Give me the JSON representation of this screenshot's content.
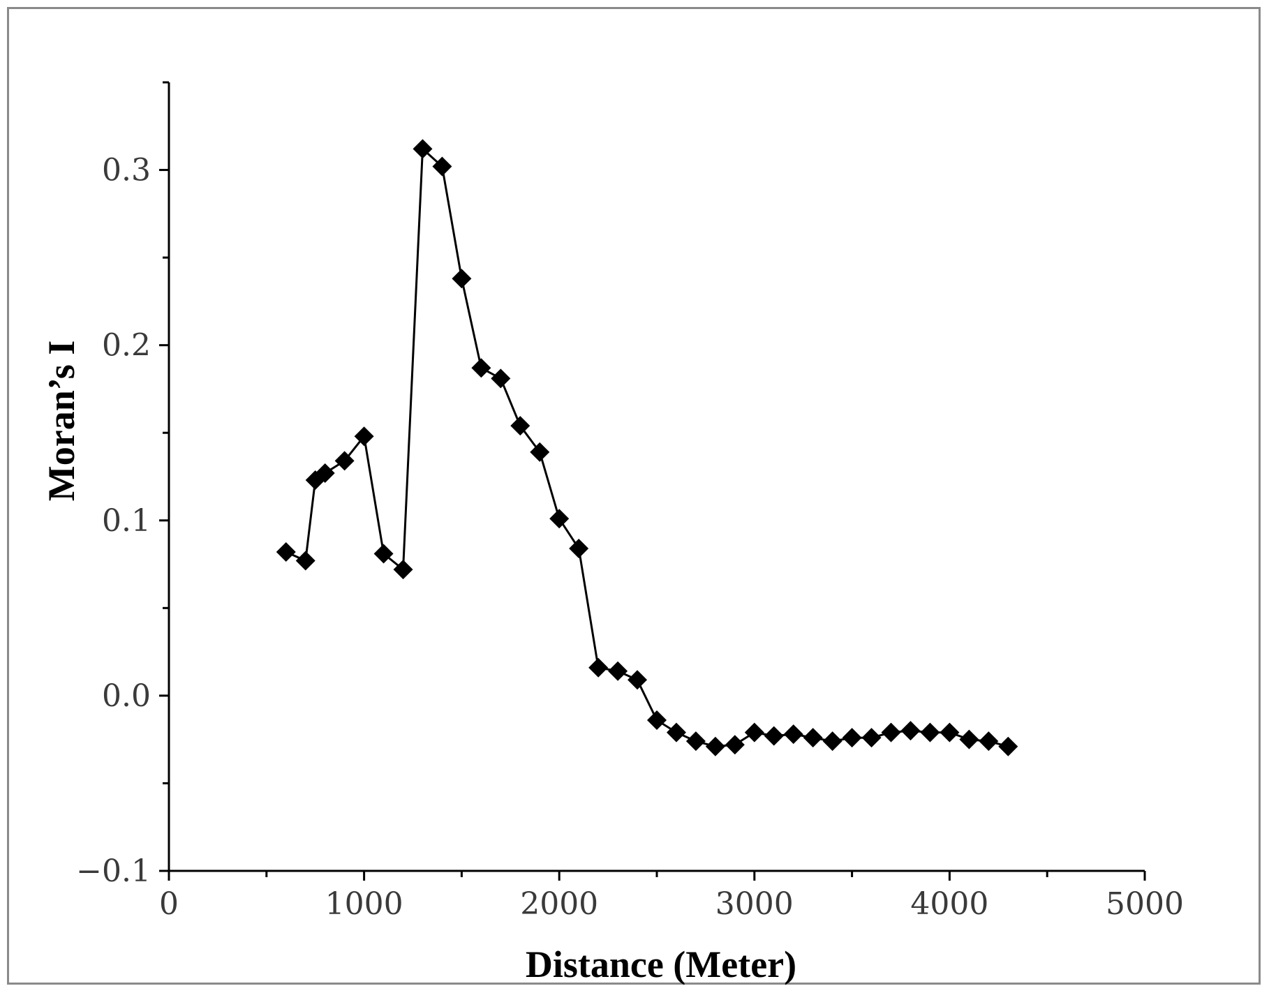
{
  "chart_data": {
    "type": "line",
    "xlabel": "Distance (Meter)",
    "ylabel": "Moran’s I",
    "xlim": [
      0,
      5000
    ],
    "ylim": [
      -0.1,
      0.35
    ],
    "x_ticks": [
      0,
      1000,
      2000,
      3000,
      4000,
      5000
    ],
    "x_tick_labels": [
      "0",
      "1000",
      "2000",
      "3000",
      "4000",
      "5000"
    ],
    "y_ticks": [
      -0.1,
      0.0,
      0.1,
      0.2,
      0.3
    ],
    "y_tick_labels": [
      "−0.1",
      "0.0",
      "0.1",
      "0.2",
      "0.3"
    ],
    "marker": "diamond",
    "line_color": "#000000",
    "marker_color": "#000000",
    "series": [
      {
        "x": [
          600,
          700,
          750,
          800,
          900,
          1000,
          1100,
          1200,
          1300,
          1400,
          1500,
          1600,
          1700,
          1800,
          1900,
          2000,
          2100,
          2200,
          2300,
          2400,
          2500,
          2600,
          2700,
          2800,
          2900,
          3000,
          3100,
          3200,
          3300,
          3400,
          3500,
          3600,
          3700,
          3800,
          3900,
          4000,
          4100,
          4200,
          4300
        ],
        "y": [
          0.082,
          0.077,
          0.123,
          0.127,
          0.134,
          0.148,
          0.081,
          0.072,
          0.312,
          0.302,
          0.238,
          0.187,
          0.181,
          0.154,
          0.139,
          0.101,
          0.084,
          0.016,
          0.014,
          0.009,
          -0.014,
          -0.021,
          -0.026,
          -0.029,
          -0.028,
          -0.021,
          -0.023,
          -0.022,
          -0.024,
          -0.026,
          -0.024,
          -0.024,
          -0.021,
          -0.02,
          -0.021,
          -0.021,
          -0.025,
          -0.026,
          -0.029
        ]
      }
    ]
  }
}
